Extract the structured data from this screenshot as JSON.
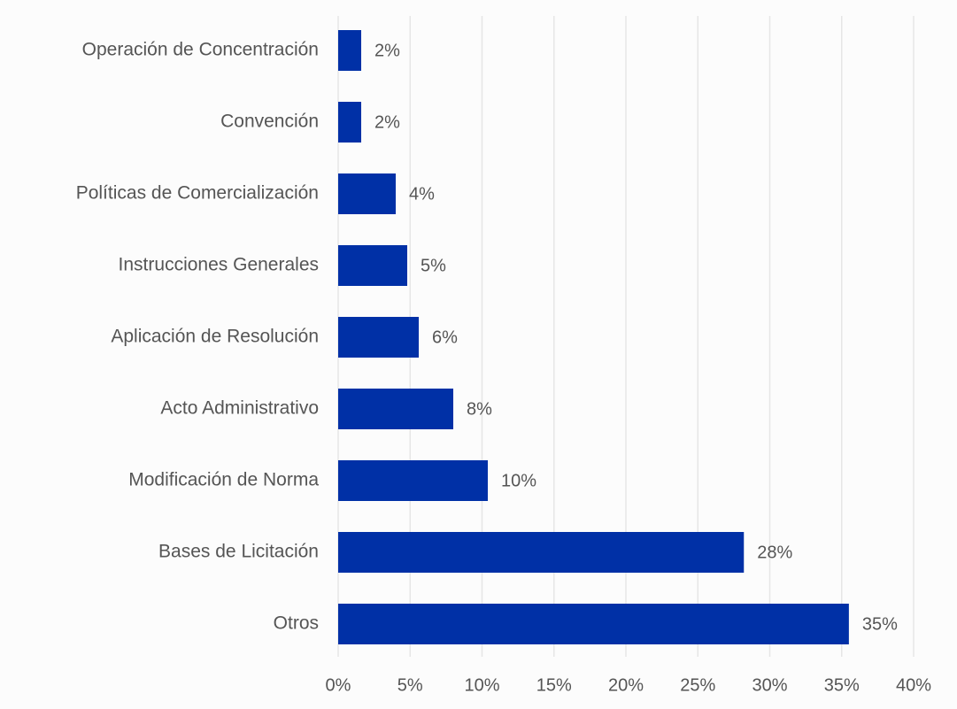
{
  "colors": {
    "bar": "#0030a6",
    "grid": "#e6e6e6",
    "text": "#555555",
    "background": "#fcfcfc"
  },
  "chart_data": {
    "type": "bar",
    "orientation": "horizontal",
    "title": "",
    "xlabel": "",
    "ylabel": "",
    "categories": [
      "Operación de Concentración",
      "Convención",
      "Políticas de Comercialización",
      "Instrucciones Generales",
      "Aplicación de Resolución",
      "Acto Administrativo",
      "Modificación de Norma",
      "Bases de Licitación",
      "Otros"
    ],
    "values": [
      1.6,
      1.6,
      4.0,
      4.8,
      5.6,
      8.0,
      10.4,
      28.2,
      35.5
    ],
    "data_labels": [
      "2%",
      "2%",
      "4%",
      "5%",
      "6%",
      "8%",
      "10%",
      "28%",
      "35%"
    ],
    "xlim": [
      0,
      40
    ],
    "x_ticks": [
      0,
      5,
      10,
      15,
      20,
      25,
      30,
      35,
      40
    ],
    "x_tick_labels": [
      "0%",
      "5%",
      "10%",
      "15%",
      "20%",
      "25%",
      "30%",
      "35%",
      "40%"
    ],
    "grid": "vertical",
    "legend": "none"
  }
}
